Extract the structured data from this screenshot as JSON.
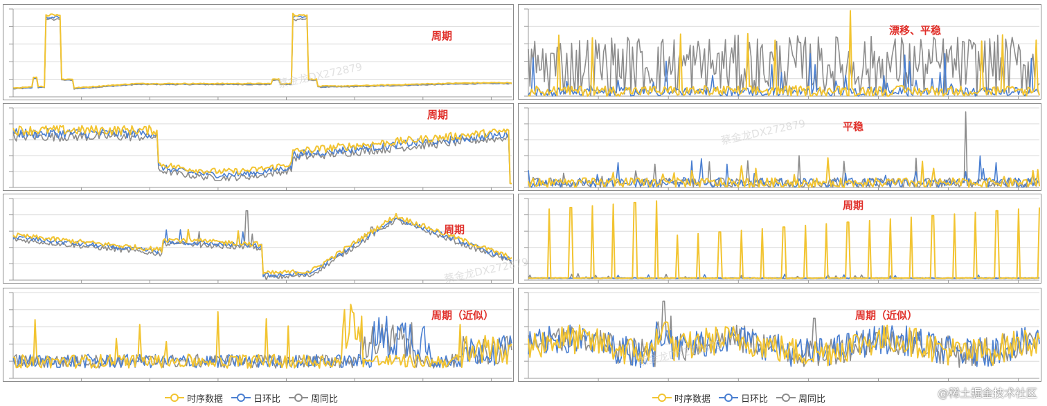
{
  "colors": {
    "series": [
      "#f2c431",
      "#4a7fd1",
      "#8c8c8c"
    ],
    "title": "#e0302a",
    "grid": "#d9d9d9"
  },
  "legend": {
    "left": [
      "时序数据",
      "日环比",
      "周同比"
    ],
    "right": [
      "时序数据",
      "日环比",
      "周同比"
    ]
  },
  "watermark": "稀土掘金技术社区",
  "watermark_user": "蔡金龙DX272879",
  "chart_data": [
    {
      "id": "L1",
      "type": "line",
      "title": "周期",
      "pattern": "periodic_spike",
      "series": [
        "时序数据",
        "日环比",
        "周同比"
      ]
    },
    {
      "id": "L2",
      "type": "line",
      "title": "周期",
      "pattern": "level_shift",
      "series": [
        "时序数据",
        "日环比",
        "周同比"
      ]
    },
    {
      "id": "L3",
      "type": "line",
      "title": "周期",
      "pattern": "trend_cycle",
      "series": [
        "时序数据",
        "日环比",
        "周同比"
      ]
    },
    {
      "id": "L4",
      "type": "line",
      "title": "周期（近似）",
      "pattern": "noisy_burst",
      "series": [
        "时序数据",
        "日环比",
        "周同比"
      ]
    },
    {
      "id": "R1",
      "type": "line",
      "title": "漂移、平稳",
      "pattern": "drift_noise",
      "series": [
        "时序数据",
        "日环比",
        "周同比"
      ]
    },
    {
      "id": "R2",
      "type": "line",
      "title": "平稳",
      "pattern": "stable_low",
      "series": [
        "时序数据",
        "日环比",
        "周同比"
      ]
    },
    {
      "id": "R3",
      "type": "line",
      "title": "周期",
      "pattern": "regular_spikes",
      "series": [
        "时序数据",
        "日环比",
        "周同比"
      ]
    },
    {
      "id": "R4",
      "type": "line",
      "title": "周期（近似）",
      "pattern": "noisy_band",
      "series": [
        "时序数据",
        "日环比",
        "周同比"
      ]
    }
  ]
}
